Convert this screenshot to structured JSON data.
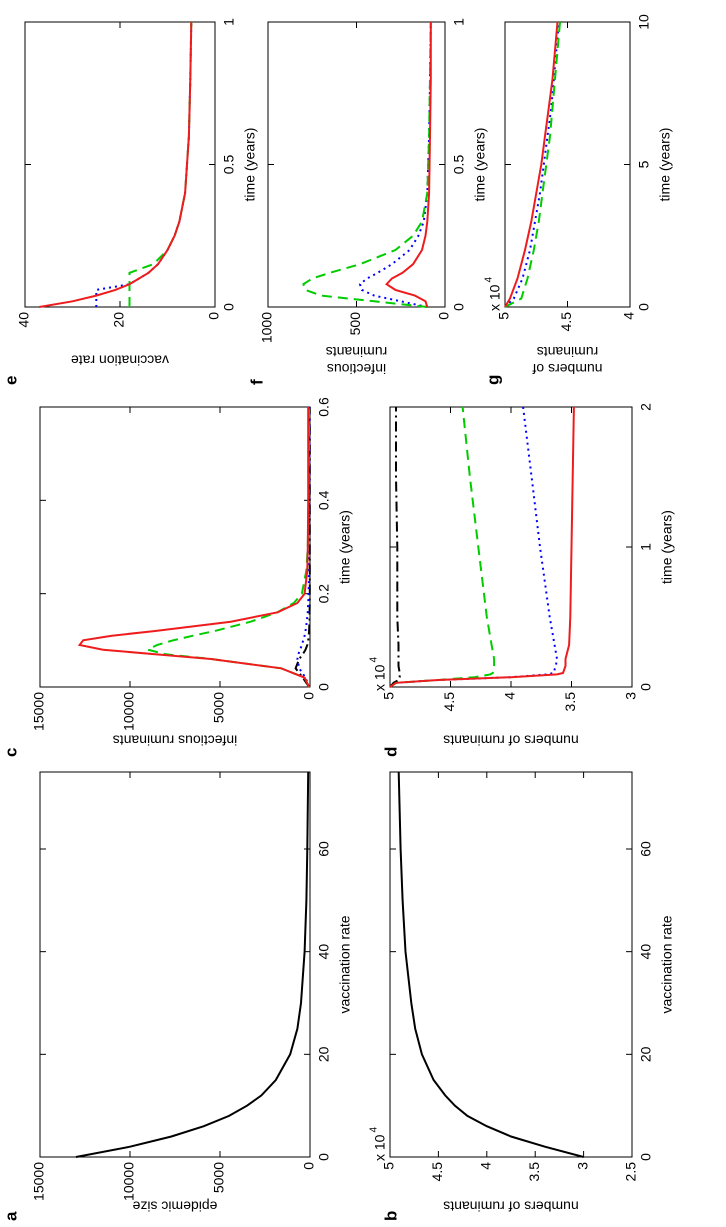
{
  "chart_data": [
    {
      "type": "line",
      "panel_label": "a",
      "x_label": "vaccination rate",
      "y_label": [
        "epidemic size"
      ],
      "x": [
        0,
        2,
        4,
        6,
        8,
        10,
        12,
        15,
        20,
        25,
        30,
        40,
        50,
        60,
        75
      ],
      "series": [
        {
          "color": "#000000",
          "style": "solid",
          "values": [
            13000,
            10000,
            7700,
            5900,
            4500,
            3500,
            2700,
            1900,
            1100,
            700,
            500,
            300,
            200,
            150,
            100
          ]
        }
      ],
      "xlim": [
        0,
        75
      ],
      "xticks": [
        0,
        20,
        40,
        60
      ],
      "ylim": [
        0,
        15000
      ],
      "yticks": [
        0,
        5000,
        10000,
        15000
      ]
    },
    {
      "type": "line",
      "panel_label": "b",
      "x_label": "vaccination rate",
      "y_label": [
        "numbers of ruminants"
      ],
      "multiplier": {
        "base": "x 10",
        "exponent": "4"
      },
      "x": [
        0,
        2,
        4,
        6,
        8,
        10,
        12,
        15,
        20,
        25,
        30,
        40,
        50,
        60,
        75
      ],
      "series": [
        {
          "color": "#000000",
          "style": "solid",
          "values": [
            3.0,
            3.4,
            3.75,
            4.0,
            4.2,
            4.33,
            4.43,
            4.55,
            4.67,
            4.74,
            4.78,
            4.84,
            4.87,
            4.89,
            4.91
          ]
        }
      ],
      "xlim": [
        0,
        75
      ],
      "xticks": [
        0,
        20,
        40,
        60
      ],
      "ylim": [
        2.5,
        5
      ],
      "yticks": [
        2.5,
        3,
        3.5,
        4,
        4.5,
        5
      ]
    },
    {
      "type": "line",
      "panel_label": "c",
      "x_label": "time (years)",
      "y_label": [
        "infectious ruminants"
      ],
      "x": [
        0,
        0.02,
        0.04,
        0.06,
        0.07,
        0.08,
        0.09,
        0.1,
        0.11,
        0.12,
        0.14,
        0.16,
        0.18,
        0.2,
        0.25,
        0.3,
        0.4,
        0.5,
        0.6
      ],
      "series": [
        {
          "color": "#000000",
          "style": "dashdot",
          "values": [
            50,
            400,
            800,
            600,
            400,
            250,
            150,
            100,
            70,
            50,
            30,
            20,
            10,
            10,
            10,
            10,
            10,
            10,
            10
          ]
        },
        {
          "color": "#0000ff",
          "style": "dotted",
          "values": [
            50,
            250,
            600,
            700,
            650,
            550,
            450,
            380,
            300,
            250,
            180,
            130,
            100,
            80,
            60,
            50,
            40,
            30,
            30
          ]
        },
        {
          "color": "#00cc00",
          "style": "dashed",
          "values": [
            50,
            300,
            1600,
            5500,
            8000,
            9000,
            8500,
            7600,
            6500,
            5300,
            3300,
            1800,
            900,
            450,
            200,
            120,
            80,
            60,
            50
          ]
        },
        {
          "color": "#ee1c1c",
          "style": "solid",
          "values": [
            50,
            300,
            1600,
            5500,
            8600,
            11500,
            12800,
            12600,
            11000,
            8600,
            4400,
            1800,
            700,
            300,
            150,
            120,
            100,
            100,
            100
          ]
        }
      ],
      "xlim": [
        0,
        0.6
      ],
      "xticks": [
        0,
        0.2,
        0.4,
        0.6
      ],
      "ylim": [
        0,
        15000
      ],
      "yticks": [
        0,
        5000,
        10000,
        15000
      ]
    },
    {
      "type": "line",
      "panel_label": "d",
      "x_label": "time (years)",
      "y_label": [
        "numbers of ruminants"
      ],
      "multiplier": {
        "base": "x 10",
        "exponent": "4"
      },
      "x": [
        0,
        0.03,
        0.05,
        0.07,
        0.09,
        0.1,
        0.15,
        0.2,
        0.3,
        0.5,
        1,
        1.5,
        2
      ],
      "series": [
        {
          "color": "#000000",
          "style": "dashdot",
          "values": [
            5,
            4.97,
            4.93,
            4.92,
            4.92,
            4.92,
            4.93,
            4.93,
            4.93,
            4.94,
            4.94,
            4.95,
            4.95
          ]
        },
        {
          "color": "#0000ff",
          "style": "dotted",
          "values": [
            5,
            4.95,
            4.6,
            4.0,
            3.7,
            3.65,
            3.63,
            3.62,
            3.64,
            3.68,
            3.76,
            3.83,
            3.9
          ]
        },
        {
          "color": "#00cc00",
          "style": "dashed",
          "values": [
            5,
            4.95,
            4.6,
            4.3,
            4.17,
            4.15,
            4.14,
            4.14,
            4.16,
            4.2,
            4.27,
            4.34,
            4.4
          ]
        },
        {
          "color": "#ee1c1c",
          "style": "solid",
          "values": [
            5,
            4.95,
            4.6,
            4.0,
            3.62,
            3.57,
            3.55,
            3.55,
            3.52,
            3.51,
            3.5,
            3.49,
            3.48
          ]
        }
      ],
      "xlim": [
        0,
        2
      ],
      "xticks": [
        0,
        1,
        2
      ],
      "ylim": [
        3,
        5
      ],
      "yticks": [
        3,
        3.5,
        4,
        4.5,
        5
      ]
    },
    {
      "type": "line",
      "panel_label": "e",
      "x_label": "time (years)",
      "y_label": [
        "vaccination rate"
      ],
      "x": [
        0,
        0.02,
        0.04,
        0.06,
        0.08,
        0.1,
        0.12,
        0.15,
        0.2,
        0.25,
        0.3,
        0.4,
        0.6,
        0.8,
        1
      ],
      "series": [
        {
          "color": "#0000ff",
          "style": "dotted",
          "values": [
            25,
            25,
            25,
            25,
            18,
            16,
            14,
            12,
            10,
            8.5,
            7.5,
            6.3,
            5.5,
            5.2,
            5
          ]
        },
        {
          "color": "#00cc00",
          "style": "dashed",
          "values": [
            18,
            18,
            18,
            18,
            18,
            18,
            18,
            13,
            10,
            8.5,
            7.5,
            6.3,
            5.5,
            5.2,
            5
          ]
        },
        {
          "color": "#ee1c1c",
          "style": "solid",
          "values": [
            37,
            30,
            25,
            21,
            18,
            16,
            14,
            12,
            10,
            8.5,
            7.5,
            6.3,
            5.5,
            5.2,
            5
          ]
        }
      ],
      "xlim": [
        0,
        1
      ],
      "xticks": [
        0,
        0.5,
        1
      ],
      "ylim": [
        0,
        40
      ],
      "yticks": [
        0,
        20,
        40
      ]
    },
    {
      "type": "line",
      "panel_label": "f",
      "x_label": "time (years)",
      "y_label": [
        "infectious",
        "ruminants"
      ],
      "x": [
        0,
        0.02,
        0.04,
        0.06,
        0.08,
        0.1,
        0.12,
        0.15,
        0.2,
        0.25,
        0.3,
        0.4,
        0.6,
        0.8,
        1
      ],
      "series": [
        {
          "color": "#0000ff",
          "style": "dotted",
          "values": [
            100,
            250,
            400,
            470,
            480,
            440,
            380,
            300,
            200,
            150,
            120,
            100,
            90,
            85,
            80
          ]
        },
        {
          "color": "#00cc00",
          "style": "dashed",
          "values": [
            100,
            400,
            700,
            790,
            800,
            750,
            650,
            480,
            280,
            180,
            130,
            100,
            90,
            85,
            80
          ]
        },
        {
          "color": "#ee1c1c",
          "style": "solid",
          "values": [
            100,
            110,
            170,
            280,
            330,
            300,
            240,
            180,
            130,
            110,
            100,
            90,
            85,
            80,
            80
          ]
        }
      ],
      "xlim": [
        0,
        1
      ],
      "xticks": [
        0,
        0.5,
        1
      ],
      "ylim": [
        0,
        1000
      ],
      "yticks": [
        0,
        500,
        1000
      ]
    },
    {
      "type": "line",
      "panel_label": "g",
      "x_label": "time (years)",
      "y_label": [
        "numbers of",
        "ruminants"
      ],
      "multiplier": {
        "base": "x 10",
        "exponent": "4"
      },
      "x": [
        0,
        0.3,
        1,
        2,
        3,
        4,
        5,
        6,
        7,
        8,
        9,
        10
      ],
      "series": [
        {
          "color": "#0000ff",
          "style": "dotted",
          "values": [
            5,
            4.93,
            4.86,
            4.8,
            4.76,
            4.72,
            4.69,
            4.66,
            4.63,
            4.61,
            4.59,
            4.57
          ]
        },
        {
          "color": "#00cc00",
          "style": "dashed",
          "values": [
            5,
            4.87,
            4.82,
            4.77,
            4.73,
            4.7,
            4.67,
            4.64,
            4.62,
            4.6,
            4.58,
            4.56
          ]
        },
        {
          "color": "#ee1c1c",
          "style": "solid",
          "values": [
            5,
            4.96,
            4.9,
            4.84,
            4.79,
            4.75,
            4.71,
            4.68,
            4.65,
            4.62,
            4.6,
            4.58
          ]
        }
      ],
      "xlim": [
        0,
        10
      ],
      "xticks": [
        0,
        5,
        10
      ],
      "ylim": [
        4,
        5
      ],
      "yticks": [
        4,
        4.5,
        5
      ]
    }
  ]
}
